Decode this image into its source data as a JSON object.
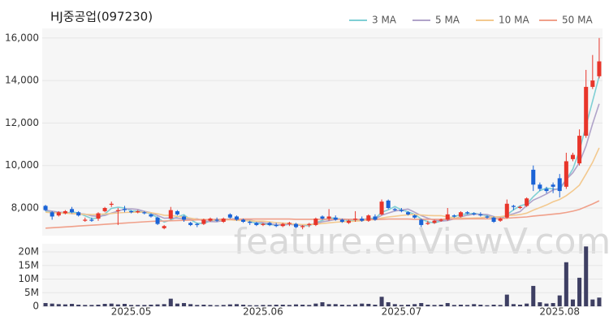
{
  "chart_data": {
    "type": "candlestick",
    "title": "HJ중공업(097230)",
    "watermark": "feature.enViewV.com",
    "up_color": "#e8352a",
    "down_color": "#1a63d6",
    "volume_color": "#3e3f63",
    "grid": true,
    "categories": [
      null,
      null,
      null,
      null,
      null,
      null,
      null,
      null,
      null,
      null,
      null,
      null,
      null,
      "2025.05",
      null,
      null,
      null,
      null,
      null,
      null,
      null,
      null,
      null,
      null,
      null,
      null,
      null,
      null,
      null,
      null,
      null,
      null,
      null,
      "2025.06",
      null,
      null,
      null,
      null,
      null,
      null,
      null,
      null,
      null,
      null,
      null,
      null,
      null,
      null,
      null,
      null,
      null,
      null,
      null,
      null,
      "2025.07",
      null,
      null,
      null,
      null,
      null,
      null,
      null,
      null,
      null,
      null,
      null,
      null,
      null,
      null,
      null,
      null,
      null,
      null,
      null,
      null,
      null,
      null,
      null,
      "2025.08",
      null,
      null,
      null,
      null,
      null,
      null
    ],
    "open": [
      8100,
      7800,
      7650,
      7750,
      7950,
      7800,
      7400,
      7450,
      7500,
      7850,
      8150,
      7850,
      7950,
      7850,
      7800,
      7800,
      7700,
      7550,
      7050,
      7500,
      7850,
      7600,
      7300,
      7250,
      7250,
      7400,
      7450,
      7350,
      7700,
      7600,
      7450,
      7350,
      7300,
      7200,
      7300,
      7200,
      7150,
      7250,
      7250,
      7100,
      7200,
      7200,
      7600,
      7500,
      7550,
      7450,
      7300,
      7450,
      7500,
      7400,
      7600,
      7700,
      8350,
      7950,
      7900,
      7800,
      7650,
      7450,
      7250,
      7300,
      7400,
      7450,
      7650,
      7600,
      7800,
      7750,
      7700,
      7600,
      7550,
      7400,
      7550,
      8100,
      8000,
      8100,
      9800,
      9100,
      8900,
      9100,
      9400,
      9000,
      10300,
      10100,
      11400,
      13700,
      14200
    ],
    "high": [
      8150,
      7850,
      7850,
      7900,
      8050,
      7850,
      7550,
      7550,
      7800,
      8050,
      8300,
      8000,
      8100,
      7900,
      7900,
      7850,
      7750,
      7600,
      7200,
      8050,
      7900,
      7650,
      7350,
      7300,
      7500,
      7550,
      7550,
      7550,
      7750,
      7650,
      7500,
      7400,
      7350,
      7300,
      7350,
      7300,
      7300,
      7350,
      7300,
      7200,
      7300,
      7550,
      7650,
      7950,
      7650,
      7500,
      7450,
      7850,
      7600,
      7700,
      7700,
      8400,
      8400,
      8000,
      8000,
      7850,
      7700,
      7500,
      7400,
      7450,
      7500,
      8000,
      7700,
      7850,
      7850,
      7800,
      7800,
      7650,
      7600,
      7550,
      8400,
      8150,
      8100,
      8500,
      10000,
      9200,
      9000,
      9200,
      9600,
      10600,
      10600,
      11700,
      14500,
      15200,
      16000
    ],
    "low": [
      7850,
      7450,
      7600,
      7700,
      7750,
      7600,
      7350,
      7350,
      7400,
      7800,
      8050,
      7200,
      7800,
      7750,
      7750,
      7700,
      7550,
      7200,
      7000,
      7450,
      7650,
      7350,
      7150,
      7100,
      7200,
      7350,
      7350,
      7300,
      7500,
      7400,
      7300,
      7200,
      7150,
      7150,
      7150,
      7100,
      7100,
      7150,
      7050,
      7000,
      7100,
      7150,
      7450,
      7400,
      7400,
      7300,
      7250,
      7350,
      7350,
      7350,
      7400,
      7650,
      7950,
      7850,
      7800,
      7650,
      7500,
      7100,
      7200,
      7250,
      7350,
      7400,
      7550,
      7550,
      7700,
      7650,
      7600,
      7500,
      7300,
      7350,
      7500,
      7900,
      7950,
      8050,
      8800,
      8800,
      8700,
      8700,
      8500,
      8900,
      10200,
      10000,
      11300,
      13600,
      14100
    ],
    "close": [
      7900,
      7600,
      7800,
      7850,
      7800,
      7650,
      7450,
      7400,
      7750,
      8000,
      8200,
      7900,
      7900,
      7800,
      7850,
      7750,
      7600,
      7250,
      7150,
      7900,
      7700,
      7450,
      7200,
      7200,
      7450,
      7500,
      7400,
      7500,
      7550,
      7450,
      7350,
      7300,
      7200,
      7250,
      7200,
      7150,
      7250,
      7300,
      7100,
      7150,
      7250,
      7500,
      7500,
      7600,
      7450,
      7350,
      7400,
      7500,
      7400,
      7650,
      7450,
      8300,
      8000,
      7900,
      7850,
      7700,
      7550,
      7200,
      7300,
      7400,
      7450,
      7700,
      7600,
      7800,
      7750,
      7700,
      7650,
      7550,
      7350,
      7500,
      8200,
      8050,
      8050,
      8450,
      9100,
      8900,
      8800,
      9000,
      8800,
      10200,
      10500,
      11400,
      13700,
      14000,
      14900
    ],
    "ylim": [
      6700,
      16450
    ],
    "yticks": [
      {
        "value": 8000,
        "label": "8,000"
      },
      {
        "value": 10000,
        "label": "10,000"
      },
      {
        "value": 12000,
        "label": "12,000"
      },
      {
        "value": 14000,
        "label": "14,000"
      },
      {
        "value": 16000,
        "label": "16,000"
      }
    ],
    "moving_averages": [
      {
        "name": "3 MA",
        "color": "#7fcfd4",
        "values": [
          7850,
          7800,
          7767,
          7750,
          7817,
          7767,
          7633,
          7500,
          7533,
          7717,
          7983,
          8033,
          8000,
          7867,
          7850,
          7800,
          7733,
          7533,
          7333,
          7433,
          7583,
          7683,
          7450,
          7283,
          7283,
          7383,
          7450,
          7467,
          7483,
          7500,
          7450,
          7367,
          7283,
          7250,
          7217,
          7200,
          7200,
          7233,
          7217,
          7183,
          7167,
          7300,
          7417,
          7533,
          7517,
          7467,
          7400,
          7417,
          7433,
          7517,
          7500,
          7800,
          7917,
          8067,
          7917,
          7817,
          7700,
          7483,
          7350,
          7300,
          7383,
          7517,
          7583,
          7700,
          7717,
          7750,
          7700,
          7633,
          7517,
          7467,
          7683,
          7917,
          8100,
          8183,
          8533,
          8817,
          8933,
          8900,
          8867,
          9333,
          9833,
          10700,
          11867,
          13033,
          14200
        ]
      },
      {
        "name": "5 MA",
        "color": "#b0a3c9",
        "values": [
          7900,
          7850,
          7800,
          7790,
          7730,
          7740,
          7710,
          7630,
          7610,
          7650,
          7760,
          7850,
          7950,
          7960,
          7930,
          7840,
          7780,
          7650,
          7520,
          7530,
          7520,
          7490,
          7480,
          7490,
          7390,
          7360,
          7350,
          7410,
          7480,
          7480,
          7450,
          7430,
          7370,
          7310,
          7260,
          7220,
          7210,
          7230,
          7200,
          7190,
          7210,
          7270,
          7350,
          7400,
          7460,
          7480,
          7470,
          7460,
          7420,
          7460,
          7480,
          7660,
          7760,
          7860,
          7900,
          7950,
          7800,
          7640,
          7520,
          7430,
          7380,
          7410,
          7490,
          7590,
          7660,
          7710,
          7700,
          7690,
          7600,
          7550,
          7650,
          7730,
          7830,
          8120,
          8370,
          8510,
          8660,
          8850,
          8920,
          9340,
          9660,
          10140,
          10920,
          11960,
          12900
        ]
      },
      {
        "name": "10 MA",
        "color": "#f3c98f",
        "values": [
          7800,
          7780,
          7770,
          7760,
          7740,
          7720,
          7700,
          7690,
          7700,
          7720,
          7740,
          7770,
          7790,
          7800,
          7800,
          7800,
          7780,
          7730,
          7660,
          7650,
          7610,
          7570,
          7520,
          7470,
          7460,
          7440,
          7420,
          7440,
          7450,
          7420,
          7410,
          7400,
          7380,
          7380,
          7350,
          7310,
          7290,
          7270,
          7230,
          7220,
          7220,
          7240,
          7270,
          7300,
          7330,
          7350,
          7360,
          7380,
          7400,
          7450,
          7450,
          7530,
          7580,
          7610,
          7650,
          7680,
          7700,
          7670,
          7650,
          7640,
          7640,
          7580,
          7540,
          7530,
          7520,
          7530,
          7540,
          7580,
          7580,
          7590,
          7640,
          7660,
          7690,
          7760,
          7900,
          8020,
          8140,
          8290,
          8400,
          8580,
          8810,
          9080,
          9600,
          10150,
          10830
        ]
      },
      {
        "name": "50 MA",
        "color": "#f0a08a",
        "values": [
          7050,
          7070,
          7090,
          7110,
          7130,
          7150,
          7170,
          7190,
          7210,
          7230,
          7250,
          7270,
          7290,
          7310,
          7330,
          7350,
          7370,
          7380,
          7390,
          7400,
          7410,
          7420,
          7430,
          7440,
          7450,
          7460,
          7460,
          7470,
          7470,
          7470,
          7480,
          7480,
          7480,
          7480,
          7480,
          7480,
          7480,
          7480,
          7470,
          7470,
          7470,
          7470,
          7470,
          7470,
          7470,
          7470,
          7460,
          7460,
          7460,
          7460,
          7460,
          7470,
          7480,
          7480,
          7480,
          7480,
          7470,
          7470,
          7470,
          7470,
          7470,
          7480,
          7480,
          7480,
          7490,
          7490,
          7490,
          7490,
          7490,
          7500,
          7520,
          7540,
          7560,
          7580,
          7620,
          7650,
          7680,
          7710,
          7740,
          7790,
          7850,
          7930,
          8060,
          8190,
          8340
        ]
      }
    ],
    "volume": {
      "values": [
        1200000,
        1000000,
        800000,
        700000,
        900000,
        600000,
        500000,
        500000,
        600000,
        900000,
        1000000,
        700000,
        900000,
        500000,
        500000,
        500000,
        600000,
        700000,
        800000,
        2800000,
        1000000,
        1200000,
        800000,
        500000,
        600000,
        500000,
        400000,
        500000,
        700000,
        800000,
        600000,
        400000,
        400000,
        500000,
        500000,
        600000,
        600000,
        500000,
        700000,
        600000,
        500000,
        1000000,
        1500000,
        800000,
        800000,
        600000,
        500000,
        700000,
        1000000,
        900000,
        600000,
        3500000,
        1500000,
        800000,
        500000,
        600000,
        800000,
        1200000,
        600000,
        500000,
        600000,
        1200000,
        500000,
        600000,
        500000,
        800000,
        600000,
        400000,
        600000,
        500000,
        4300000,
        800000,
        600000,
        1000000,
        7500000,
        1500000,
        1000000,
        1200000,
        4000000,
        16200000,
        2500000,
        10500000,
        22000000,
        2500000,
        3200000
      ],
      "ylim": [
        0,
        23000000
      ],
      "yticks": [
        0,
        {
          "value": 5000000,
          "label": "5M"
        },
        {
          "value": 10000000,
          "label": "10M"
        },
        {
          "value": 15000000,
          "label": "15M"
        },
        {
          "value": 20000000,
          "label": "20M"
        }
      ]
    }
  }
}
